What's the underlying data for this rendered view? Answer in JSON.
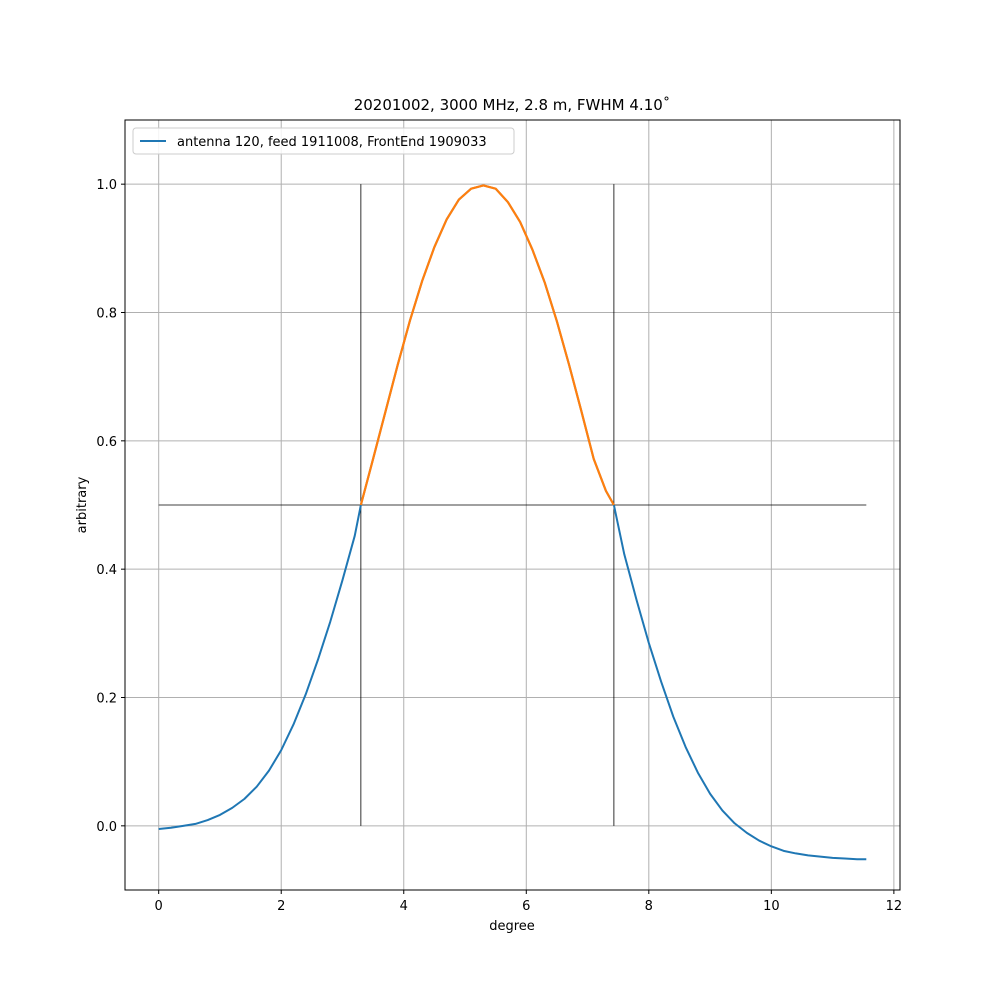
{
  "chart_data": {
    "type": "line",
    "title": "20201002, 3000 MHz, 2.8 m, FWHM 4.10˚",
    "xlabel": "degree",
    "ylabel": "arbitrary",
    "xlim": [
      -0.55,
      12.1
    ],
    "ylim": [
      -0.1,
      1.1
    ],
    "xticks": [
      0,
      2,
      4,
      6,
      8,
      10,
      12
    ],
    "yticks": [
      0.0,
      0.2,
      0.4,
      0.6,
      0.8,
      1.0
    ],
    "xtick_labels": [
      "0",
      "2",
      "4",
      "6",
      "8",
      "10",
      "12"
    ],
    "ytick_labels": [
      "0.0",
      "0.2",
      "0.4",
      "0.6",
      "0.8",
      "1.0"
    ],
    "grid": true,
    "legend_placement": "top-left",
    "colors": {
      "main": "#1f77b4",
      "fwhm": "#ff7f0e",
      "reference": "#000000",
      "grid": "#b0b0b0"
    },
    "series": [
      {
        "name": "antenna 120, feed 1911008, FrontEnd 1909033",
        "color": "#1f77b4",
        "x": [
          0.0,
          0.2,
          0.4,
          0.6,
          0.8,
          1.0,
          1.2,
          1.4,
          1.6,
          1.8,
          2.0,
          2.2,
          2.4,
          2.6,
          2.8,
          3.0,
          3.2,
          3.3,
          3.5,
          3.7,
          3.9,
          4.1,
          4.3,
          4.5,
          4.7,
          4.9,
          5.1,
          5.3,
          5.5,
          5.7,
          5.9,
          6.1,
          6.3,
          6.5,
          6.7,
          6.9,
          7.1,
          7.3,
          7.43,
          7.6,
          7.8,
          8.0,
          8.2,
          8.4,
          8.6,
          8.8,
          9.0,
          9.2,
          9.4,
          9.6,
          9.8,
          10.0,
          10.2,
          10.4,
          10.6,
          10.8,
          11.0,
          11.2,
          11.4,
          11.55
        ],
        "y": [
          -0.005,
          -0.003,
          0.0,
          0.003,
          0.009,
          0.017,
          0.028,
          0.042,
          0.061,
          0.086,
          0.118,
          0.158,
          0.205,
          0.259,
          0.318,
          0.383,
          0.452,
          0.5,
          0.572,
          0.645,
          0.718,
          0.787,
          0.849,
          0.902,
          0.945,
          0.976,
          0.993,
          0.998,
          0.993,
          0.972,
          0.941,
          0.898,
          0.847,
          0.786,
          0.718,
          0.646,
          0.572,
          0.522,
          0.5,
          0.423,
          0.352,
          0.285,
          0.225,
          0.17,
          0.123,
          0.083,
          0.05,
          0.024,
          0.004,
          -0.011,
          -0.023,
          -0.032,
          -0.039,
          -0.043,
          -0.046,
          -0.048,
          -0.05,
          -0.051,
          -0.052,
          -0.052
        ]
      },
      {
        "color": "#ff7f0e",
        "x": [
          3.3,
          3.5,
          3.7,
          3.9,
          4.1,
          4.3,
          4.5,
          4.7,
          4.9,
          5.1,
          5.3,
          5.5,
          5.7,
          5.9,
          6.1,
          6.3,
          6.5,
          6.7,
          6.9,
          7.1,
          7.3,
          7.43
        ],
        "y": [
          0.5,
          0.572,
          0.645,
          0.718,
          0.787,
          0.849,
          0.902,
          0.945,
          0.976,
          0.993,
          0.998,
          0.993,
          0.972,
          0.941,
          0.898,
          0.847,
          0.786,
          0.718,
          0.646,
          0.572,
          0.522,
          0.5
        ]
      }
    ],
    "reference_lines": {
      "horizontal": {
        "y": 0.5,
        "x_from": 0.0,
        "x_to": 11.55
      },
      "vertical": [
        {
          "x": 3.3,
          "y_from": 0.0,
          "y_to": 1.0
        },
        {
          "x": 7.43,
          "y_from": 0.0,
          "y_to": 1.0
        }
      ]
    }
  }
}
